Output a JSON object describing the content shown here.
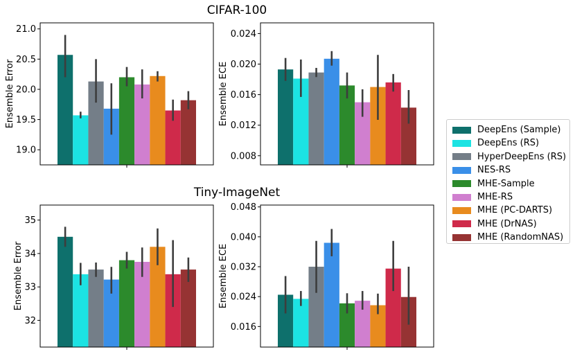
{
  "chart_data": [
    {
      "type": "bar",
      "row_title": "CIFAR-100",
      "ylabel": "Ensemble Error",
      "ylim": [
        18.75,
        21.1
      ],
      "yticks": [
        19.0,
        19.5,
        20.0,
        20.5,
        21.0
      ],
      "ytick_labels": [
        "19.0",
        "19.5",
        "20.0",
        "20.5",
        "21.0"
      ],
      "values": [
        20.57,
        19.57,
        20.13,
        19.68,
        20.2,
        20.08,
        20.22,
        19.65,
        19.82
      ],
      "err_low": [
        20.2,
        19.52,
        19.78,
        19.25,
        20.05,
        19.85,
        20.13,
        19.48,
        19.67
      ],
      "err_high": [
        20.9,
        19.63,
        20.5,
        20.1,
        20.37,
        20.33,
        20.3,
        19.83,
        19.97
      ]
    },
    {
      "type": "bar",
      "row_title": "",
      "ylabel": "Ensemble ECE",
      "ylim": [
        0.0068,
        0.0254
      ],
      "yticks": [
        0.008,
        0.012,
        0.016,
        0.02,
        0.024
      ],
      "ytick_labels": [
        "0.008",
        "0.012",
        "0.016",
        "0.020",
        "0.024"
      ],
      "values": [
        0.0193,
        0.0181,
        0.0189,
        0.0207,
        0.0172,
        0.015,
        0.017,
        0.0176,
        0.0143
      ],
      "err_low": [
        0.0178,
        0.0157,
        0.0183,
        0.0198,
        0.0155,
        0.0131,
        0.0127,
        0.0164,
        0.0122
      ],
      "err_high": [
        0.0208,
        0.0206,
        0.0195,
        0.0217,
        0.0189,
        0.0167,
        0.0212,
        0.0187,
        0.0166
      ]
    },
    {
      "type": "bar",
      "row_title": "Tiny-ImageNet",
      "ylabel": "Ensemble Error",
      "ylim": [
        31.2,
        35.45
      ],
      "yticks": [
        32,
        33,
        34,
        35
      ],
      "ytick_labels": [
        "32",
        "33",
        "34",
        "35"
      ],
      "values": [
        34.5,
        33.38,
        33.52,
        33.22,
        33.8,
        33.75,
        34.2,
        33.38,
        33.52
      ],
      "err_low": [
        34.2,
        33.05,
        33.3,
        32.8,
        33.55,
        33.3,
        33.65,
        32.4,
        33.15
      ],
      "err_high": [
        34.8,
        33.72,
        33.73,
        33.6,
        34.05,
        34.18,
        34.75,
        34.4,
        33.88
      ]
    },
    {
      "type": "bar",
      "row_title": "",
      "ylabel": "Ensemble ECE",
      "ylim": [
        0.0105,
        0.0485
      ],
      "yticks": [
        0.016,
        0.024,
        0.032,
        0.04,
        0.048
      ],
      "ytick_labels": [
        "0.016",
        "0.024",
        "0.032",
        "0.040",
        "0.048"
      ],
      "values": [
        0.0245,
        0.0234,
        0.032,
        0.0384,
        0.0222,
        0.0229,
        0.0217,
        0.0315,
        0.0239
      ],
      "err_low": [
        0.0195,
        0.0215,
        0.025,
        0.0348,
        0.0195,
        0.0205,
        0.0193,
        0.0255,
        0.0165
      ],
      "err_high": [
        0.0295,
        0.0255,
        0.0389,
        0.0421,
        0.0249,
        0.0255,
        0.0248,
        0.0389,
        0.032
      ]
    }
  ],
  "legend": [
    {
      "label": "DeepEns (Sample)",
      "color": "#0e706c"
    },
    {
      "label": "DeepEns (RS)",
      "color": "#1ce3e3"
    },
    {
      "label": "HyperDeepEns (RS)",
      "color": "#747e88"
    },
    {
      "label": "NES-RS",
      "color": "#3a8fe8"
    },
    {
      "label": "MHE-Sample",
      "color": "#2c8a2c"
    },
    {
      "label": "MHE-RS",
      "color": "#d07fcf"
    },
    {
      "label": "MHE (PC-DARTS)",
      "color": "#e88b1e"
    },
    {
      "label": "MHE (DrNAS)",
      "color": "#cf2a4a"
    },
    {
      "label": "MHE (RandomNAS)",
      "color": "#963333"
    }
  ]
}
